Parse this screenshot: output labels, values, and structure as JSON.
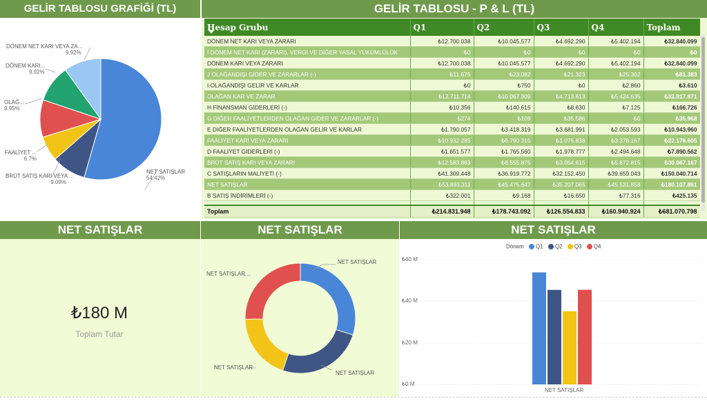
{
  "pie_panel": {
    "title": "GELİR TABLOSU GRAFİĞİ (TL)",
    "slices": [
      {
        "label": "NET SATIŞLAR",
        "pct": "54.42%",
        "value": 54.42,
        "color": "#4a86d8"
      },
      {
        "label": "BRÜT SATIŞ KARI VEYA ...",
        "pct": "9.09%",
        "value": 9.09,
        "color": "#3f5585"
      },
      {
        "label": "FAALİYET ...",
        "pct": "6.7%",
        "value": 6.7,
        "color": "#f2c417"
      },
      {
        "label": "OLAĞ...",
        "pct": "9.95%",
        "value": 9.95,
        "color": "#e0504f"
      },
      {
        "label": "DÖNEM KARI...",
        "pct": "9.92%",
        "value": 9.92,
        "color": "#22a36f"
      },
      {
        "label": "DÖNEM NET KARI VEYA ZA...",
        "pct": "9.92%",
        "value": 9.92,
        "color": "#9bc8f2"
      }
    ]
  },
  "table_panel": {
    "title": "GELİR TABLOSU - P & L (TL)",
    "columns": [
      "Hesap Grubu",
      "Q1",
      "Q2",
      "Q3",
      "Q4",
      "Toplam"
    ],
    "rows": [
      [
        "DÖNEM NET KARI VEYA ZARARI",
        "₺12.700.038",
        "₺10.045.577",
        "₺4.692.290",
        "₺5.402.194",
        "₺32.840.099"
      ],
      [
        "İ DÖNEM NET KARI (ZARARI), VERGİ VE DİĞER YASAL YÜKÜMLÜLÜK",
        "₺0",
        "₺0",
        "₺0",
        "₺0",
        "₺0"
      ],
      [
        "DÖNEM KARI VEYA ZARARI",
        "₺12.700.038",
        "₺10.045.577",
        "₺4.692.290",
        "₺5.402.194",
        "₺32.840.099"
      ],
      [
        "J OLAĞANDIŞI GİDER VE ZARARLAR (-)",
        "₺11.675",
        "₺23.082",
        "₺21.323",
        "₺25.302",
        "₺81.383"
      ],
      [
        "I OLAĞANDIŞI GELİR VE KARLAR",
        "₺0",
        "₺750",
        "₺0",
        "₺2.860",
        "₺3.610"
      ],
      [
        "OLAĞAN KAR VE ZARAR",
        "₺12.711.714",
        "₺10.067.909",
        "₺4.713.613",
        "₺5.424.635",
        "₺32.917.871"
      ],
      [
        "H FİNANSMAN GİDERLERİ (-)",
        "₺10.356",
        "₺140.615",
        "₺8.630",
        "₺7.125",
        "₺166.726"
      ],
      [
        "G DİĞER FAALİYETLERDEN OLAĞAN GİDER VE ZARARLAR (-)",
        "₺274",
        "₺109",
        "₺35.586",
        "₺0",
        "₺35.968"
      ],
      [
        "E DİĞER FAALİYETLERDEN OLAĞAN GELİR VE KARLAR",
        "₺1.790.057",
        "₺3.418.319",
        "₺3.681.991",
        "₺2.053.593",
        "₺10.943.960"
      ],
      [
        "FAALİYET KARI VEYA ZARARI",
        "₺10.932.285",
        "₺6.790.315",
        "₺1.075.838",
        "₺3.378.167",
        "₺22.176.605"
      ],
      [
        "D FAALİYET GİDERLERİ (-)",
        "₺1.651.577",
        "₺1.765.560",
        "₺1.978.777",
        "₺2.494.648",
        "₺7.890.562"
      ],
      [
        "BRÜT SATIŞ KARI VEYA ZARARI",
        "₺12.583.863",
        "₺8.555.875",
        "₺3.054.615",
        "₺5.872.815",
        "₺30.067.167"
      ],
      [
        "C SATIŞLARIN MALİYETİ (-)",
        "₺41.309.448",
        "₺36.919.772",
        "₺32.152.450",
        "₺39.659.043",
        "₺150.040.714"
      ],
      [
        "NET SATIŞLAR",
        "₺53.893.311",
        "₺45.475.647",
        "₺35.207.065",
        "₺45.531.858",
        "₺180.107.881"
      ],
      [
        "B SATIŞ İNDİRİMLERİ (-)",
        "₺322.001",
        "₺9.168",
        "₺16.650",
        "₺77.316",
        "₺425.135"
      ]
    ],
    "total": [
      "Toplam",
      "₺214.831.948",
      "₺178.743.092",
      "₺126.554.833",
      "₺160.940.924",
      "₺681.070.798"
    ]
  },
  "card_panel": {
    "title": "NET SATIŞLAR",
    "value": "₺180 M",
    "caption": "Toplam Tutar"
  },
  "donut_panel": {
    "title": "NET SATIŞLAR",
    "slice_label": "NET SATIŞLAR",
    "slices": [
      {
        "name": "Q1",
        "value": 53893311,
        "color": "#4a86d8"
      },
      {
        "name": "Q2",
        "value": 45475647,
        "color": "#3f5585"
      },
      {
        "name": "Q3",
        "value": 35207065,
        "color": "#f2c417"
      },
      {
        "name": "Q4",
        "value": 45531858,
        "color": "#e0504f"
      }
    ]
  },
  "bar_panel": {
    "title": "NET SATIŞLAR",
    "legend_title": "Dönem"
  },
  "chart_data": {
    "type": "bar",
    "categories": [
      "NET SATIŞLAR"
    ],
    "series": [
      {
        "name": "Q1",
        "values": [
          53.89
        ],
        "color": "#4a86d8"
      },
      {
        "name": "Q2",
        "values": [
          45.48
        ],
        "color": "#3f5585"
      },
      {
        "name": "Q3",
        "values": [
          35.21
        ],
        "color": "#f2c417"
      },
      {
        "name": "Q4",
        "values": [
          45.53
        ],
        "color": "#e0504f"
      }
    ],
    "y_ticks": [
      "₺60 M",
      "₺40 M",
      "₺20 M",
      "₺0 M"
    ],
    "ylim": [
      0,
      60
    ],
    "legend_position": "top",
    "grid": true
  }
}
